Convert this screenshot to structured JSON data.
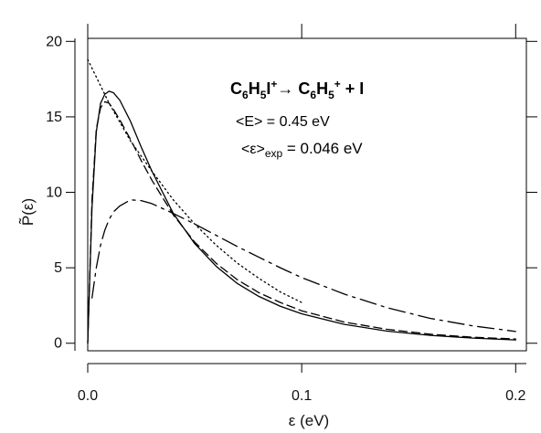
{
  "chart_data": {
    "type": "line",
    "xlabel": "ε (eV)",
    "ylabel": "P̃(ε)",
    "xlim": [
      0.0,
      0.205
    ],
    "ylim": [
      -0.5,
      20.2
    ],
    "xticks": [
      0.0,
      0.1,
      0.2
    ],
    "xtick_labels": [
      "0.0",
      "0.1",
      "0.2"
    ],
    "yticks": [
      0,
      5,
      10,
      15,
      20
    ],
    "ytick_labels": [
      "0",
      "5",
      "10",
      "15",
      "20"
    ],
    "grid": false,
    "legend": "none",
    "annotations": {
      "reaction": {
        "reactant": "C",
        "sub6a": "6",
        "mid": "H",
        "sub5a": "5",
        "iodine": "I",
        "supPlus1": "+",
        "arrow": "→ C",
        "sub6b": "6",
        "mid2": "H",
        "sub5b": "5",
        "supPlus2": "+",
        "tail": " + I"
      },
      "mean_E": "<E> = 0.45 eV",
      "mean_eps_prefix": "<ε>",
      "mean_eps_sub": "exp",
      "mean_eps_value": " = 0.046 eV"
    },
    "series": [
      {
        "style": "solid",
        "x": [
          0.0,
          0.002,
          0.004,
          0.006,
          0.008,
          0.01,
          0.012,
          0.015,
          0.02,
          0.025,
          0.03,
          0.04,
          0.05,
          0.06,
          0.07,
          0.08,
          0.09,
          0.1,
          0.12,
          0.14,
          0.16,
          0.18,
          0.2
        ],
        "y": [
          0.0,
          9.0,
          14.0,
          15.9,
          16.5,
          16.7,
          16.6,
          16.1,
          14.7,
          13.0,
          11.4,
          8.6,
          6.6,
          5.1,
          3.95,
          3.1,
          2.45,
          1.95,
          1.25,
          0.8,
          0.52,
          0.34,
          0.22
        ]
      },
      {
        "style": "dash",
        "x": [
          0.0,
          0.002,
          0.004,
          0.006,
          0.008,
          0.01,
          0.012,
          0.015,
          0.02,
          0.025,
          0.03,
          0.04,
          0.05,
          0.06,
          0.07,
          0.08,
          0.09,
          0.1,
          0.12,
          0.14,
          0.16,
          0.18,
          0.2
        ],
        "y": [
          0.0,
          9.5,
          14.2,
          15.6,
          16.0,
          15.9,
          15.5,
          14.8,
          13.5,
          12.1,
          10.8,
          8.5,
          6.7,
          5.3,
          4.2,
          3.35,
          2.7,
          2.15,
          1.4,
          0.92,
          0.6,
          0.4,
          0.28
        ]
      },
      {
        "style": "dotted",
        "x": [
          0.0,
          0.01,
          0.02,
          0.03,
          0.04,
          0.05,
          0.06,
          0.07,
          0.08,
          0.09,
          0.1
        ],
        "y": [
          18.8,
          15.9,
          13.4,
          11.4,
          9.5,
          7.9,
          6.5,
          5.3,
          4.3,
          3.4,
          2.7
        ]
      },
      {
        "style": "long-dash-dot",
        "x": [
          0.002,
          0.004,
          0.006,
          0.008,
          0.01,
          0.012,
          0.015,
          0.02,
          0.025,
          0.03,
          0.04,
          0.05,
          0.06,
          0.07,
          0.08,
          0.09,
          0.1,
          0.12,
          0.14,
          0.16,
          0.18,
          0.2
        ],
        "y": [
          3.0,
          5.0,
          6.5,
          7.5,
          8.2,
          8.7,
          9.1,
          9.5,
          9.45,
          9.25,
          8.6,
          7.9,
          7.15,
          6.4,
          5.7,
          5.0,
          4.35,
          3.25,
          2.35,
          1.65,
          1.15,
          0.78
        ]
      }
    ]
  }
}
